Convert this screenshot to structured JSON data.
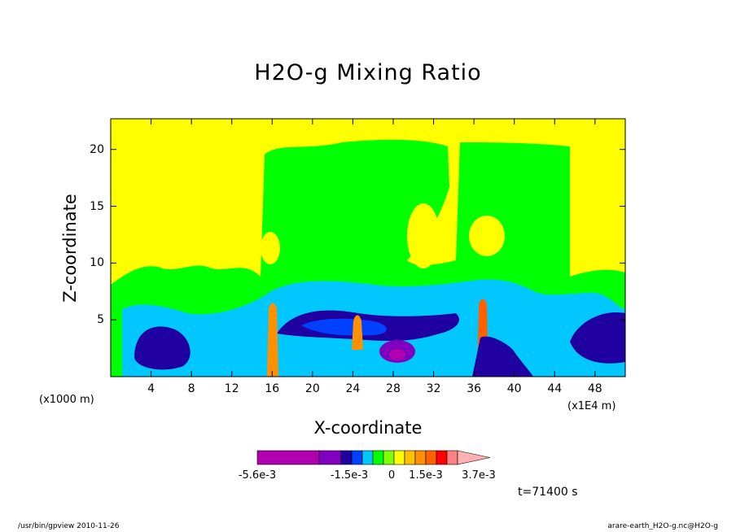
{
  "chart_data": {
    "type": "heatmap",
    "title": "H2O-g Mixing Ratio",
    "xlabel": "X-coordinate",
    "ylabel": "Z-coordinate",
    "x_unit_label": "(x1000 m)",
    "x_scale_label": "(x1E4 m)",
    "x_ticks": [
      "4",
      "8",
      "12",
      "16",
      "20",
      "24",
      "28",
      "32",
      "36",
      "40",
      "44",
      "48"
    ],
    "y_ticks": [
      "5",
      "10",
      "15",
      "20"
    ],
    "xlim": [
      0,
      51
    ],
    "ylim": [
      0,
      22.7
    ],
    "colorbar": {
      "labels": [
        "-5.6e-3",
        "-1.5e-3",
        "0",
        "1.5e-3",
        "3.7e-3"
      ],
      "colors": [
        "#b000b0",
        "#8000c0",
        "#2000a0",
        "#0040ff",
        "#00c8ff",
        "#00ff00",
        "#80ff00",
        "#ffff00",
        "#ffc000",
        "#ff9000",
        "#ff6000",
        "#ff0000",
        "#ff8080",
        "#ffb0b0"
      ]
    },
    "levels_note": "filled contour field; values shown only via colour"
  },
  "annotation": {
    "time": "t=71400 s"
  },
  "footer": {
    "left": "/usr/bin/gpview  2010-11-26",
    "right": "arare-earth_H2O-g.nc@H2O-g"
  }
}
